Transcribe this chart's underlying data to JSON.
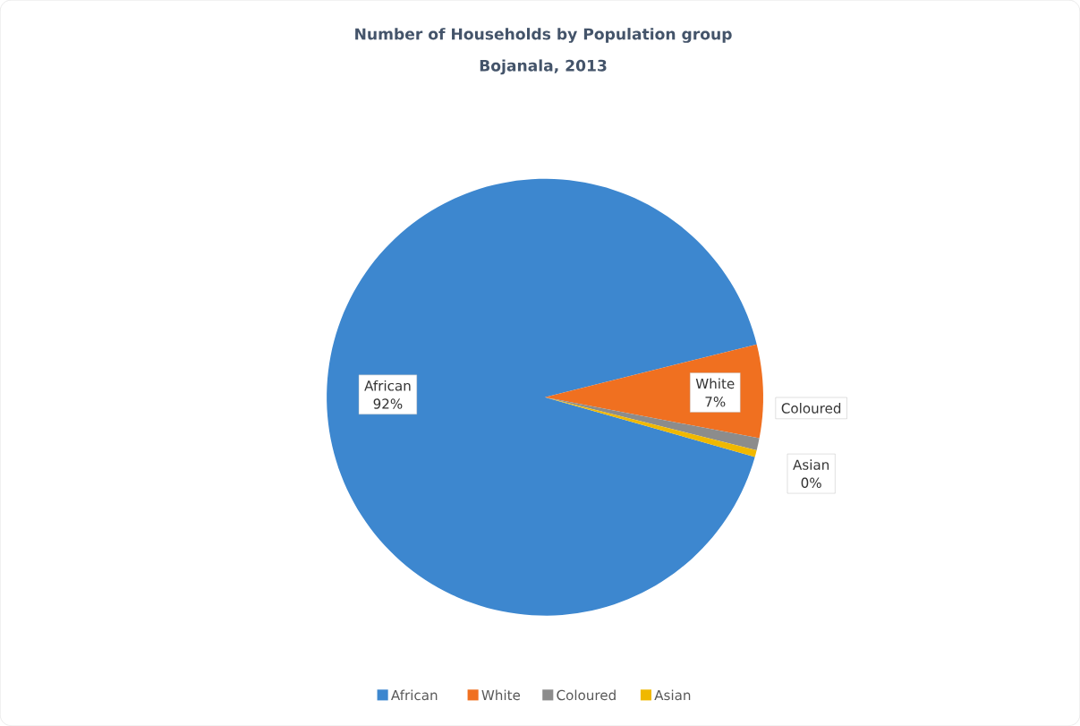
{
  "chart_data": {
    "type": "pie",
    "title": "Number of Households by Population group",
    "subtitle": "Bojanala, 2013",
    "categories": [
      "African",
      "White",
      "Coloured",
      "Asian"
    ],
    "values": [
      91.7,
      6.9,
      0.9,
      0.5
    ],
    "value_labels": [
      "92%",
      "7%",
      null,
      "0%"
    ],
    "colors": [
      "#3d87cf",
      "#f07020",
      "#8c8c8c",
      "#f0b800"
    ],
    "legend": "bottom"
  }
}
